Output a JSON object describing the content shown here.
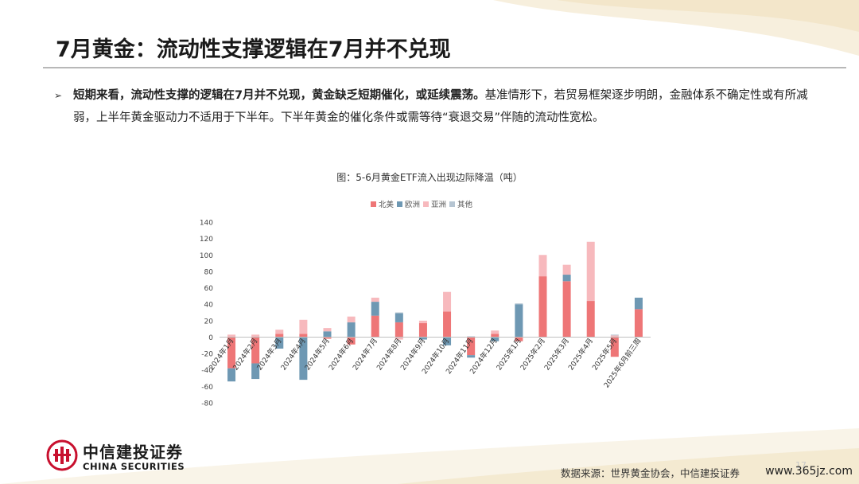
{
  "slide": {
    "title": "7月黄金：流动性支撑逻辑在7月并不兑现",
    "bullet_bold": "短期来看，流动性支撑的逻辑在7月并不兑现，黄金缺乏短期催化，或延续震荡。",
    "bullet_rest": "基准情形下，若贸易框架逐步明朗，金融体系不确定性或有所减弱，上半年黄金驱动力不适用于下半年。下半年黄金的催化条件或需等待“衰退交易”伴随的流动性宽松。",
    "source": "数据来源：世界黄金协会，中信建投证券",
    "page_number": "17",
    "watermark": "www.365jz.com",
    "logo_cn": "中信建投证券",
    "logo_en": "CHINA SECURITIES"
  },
  "chart_data": {
    "type": "bar",
    "stacked": true,
    "title": "图：5-6月黄金ETF流入出现边际降温（吨）",
    "categories": [
      "2024年1月",
      "2024年2月",
      "2024年3月",
      "2024年4月",
      "2024年5月",
      "2024年6月",
      "2024年7月",
      "2024年8月",
      "2024年9月",
      "2024年10月",
      "2024年11月",
      "2024年12月",
      "2025年1月",
      "2025年2月",
      "2025年3月",
      "2025年4月",
      "2025年5月",
      "2025年6月前三周"
    ],
    "series": [
      {
        "name": "北美",
        "color": "#ee7677",
        "values": [
          -38,
          -32,
          4,
          4,
          -2,
          -9,
          26,
          18,
          17,
          31,
          -22,
          4,
          -5,
          74,
          68,
          44,
          -24,
          34
        ]
      },
      {
        "name": "欧洲",
        "color": "#6e98b3",
        "values": [
          -16,
          -19,
          -14,
          -52,
          7,
          18,
          17,
          11,
          -3,
          -10,
          -3,
          -5,
          40,
          0,
          8,
          0,
          0,
          14
        ]
      },
      {
        "name": "亚洲",
        "color": "#f7b9bd",
        "values": [
          3,
          3,
          5,
          17,
          4,
          7,
          5,
          -3,
          3,
          24,
          0,
          4,
          0,
          26,
          12,
          72,
          2,
          0
        ]
      },
      {
        "name": "其他",
        "color": "#b6c5d2",
        "values": [
          0,
          0,
          0,
          0,
          0,
          0,
          0,
          1,
          0,
          0,
          1,
          0,
          1,
          0,
          0,
          0,
          1,
          0
        ]
      }
    ],
    "ylim": [
      -80,
      140
    ],
    "yticks": [
      -80,
      -60,
      -40,
      -20,
      0,
      20,
      40,
      60,
      80,
      100,
      120,
      140
    ],
    "legend_position": "top-center",
    "grid": false
  },
  "colors": {
    "title_rule": "#b8b8b8",
    "logo_red": "#c8102e",
    "swoosh_gold": "#f3e6c8"
  }
}
